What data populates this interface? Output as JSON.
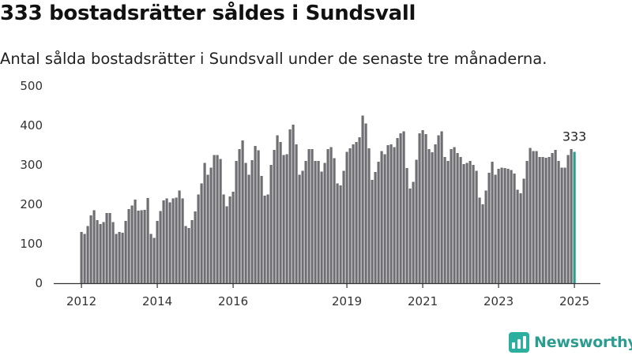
{
  "header": {
    "title": "333 bostadsrätter såldes i Sundsvall",
    "subtitle": "Antal sålda bostadsrätter i Sundsvall under de senaste tre månaderna."
  },
  "colors": {
    "bar": "#6e6e73",
    "highlight": "#2a9d8f"
  },
  "brand": {
    "name": "Newsworthy",
    "icon": "newsworthy-logo-icon"
  },
  "chart_data": {
    "type": "bar",
    "title": "333 bostadsrätter såldes i Sundsvall",
    "subtitle": "Antal sålda bostadsrätter i Sundsvall under de senaste tre månaderna.",
    "xlabel": "",
    "ylabel": "",
    "ylim": [
      0,
      500
    ],
    "yticks": [
      0,
      100,
      200,
      300,
      400,
      500
    ],
    "xticks": [
      "2012",
      "2014",
      "2016",
      "2019",
      "2021",
      "2023",
      "2025"
    ],
    "grid": false,
    "legend": "none",
    "first_period": "2012-01",
    "frequency": "monthly",
    "values": [
      130,
      125,
      145,
      172,
      185,
      160,
      150,
      155,
      178,
      178,
      155,
      125,
      130,
      128,
      158,
      188,
      197,
      212,
      184,
      185,
      186,
      216,
      125,
      115,
      158,
      183,
      210,
      215,
      205,
      215,
      217,
      235,
      215,
      145,
      140,
      160,
      182,
      225,
      253,
      305,
      275,
      293,
      325,
      325,
      315,
      225,
      195,
      220,
      232,
      310,
      340,
      362,
      305,
      275,
      312,
      348,
      337,
      272,
      222,
      225,
      300,
      338,
      375,
      358,
      325,
      327,
      390,
      402,
      352,
      275,
      285,
      310,
      340,
      340,
      310,
      310,
      283,
      305,
      340,
      345,
      317,
      253,
      248,
      285,
      333,
      342,
      352,
      358,
      370,
      425,
      405,
      342,
      262,
      282,
      308,
      335,
      327,
      350,
      352,
      345,
      368,
      380,
      385,
      292,
      240,
      257,
      313,
      380,
      388,
      378,
      340,
      332,
      352,
      375,
      385,
      320,
      310,
      340,
      345,
      330,
      320,
      302,
      305,
      310,
      300,
      285,
      217,
      200,
      235,
      280,
      308,
      275,
      290,
      293,
      292,
      290,
      287,
      278,
      237,
      228,
      265,
      310,
      343,
      335,
      335,
      320,
      320,
      318,
      320,
      330,
      338,
      310,
      293,
      293,
      325,
      340,
      333
    ],
    "highlight_last": true,
    "annotations": [
      {
        "text": "333",
        "target": "last"
      }
    ]
  }
}
